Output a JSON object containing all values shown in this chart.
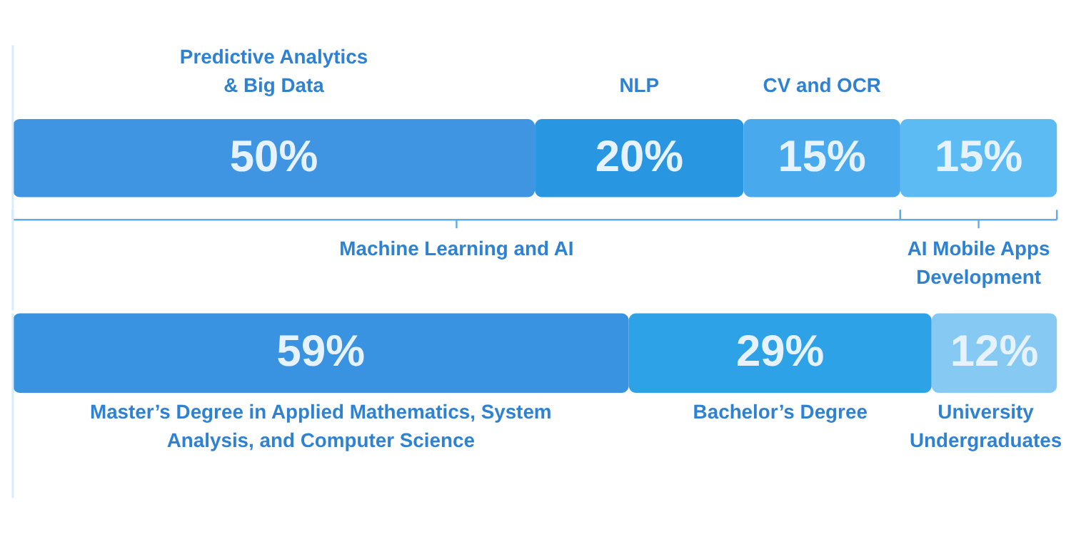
{
  "chart_data": [
    {
      "type": "bar",
      "orientation": "horizontal",
      "stacked": true,
      "categories": [
        null
      ],
      "series": [
        {
          "name": "Predictive Analytics\n& Big Data",
          "color": "#3f95e2",
          "values": [
            50
          ],
          "value_labels": [
            "50%"
          ]
        },
        {
          "name": "NLP",
          "color": "#2896e0",
          "values": [
            20
          ],
          "value_labels": [
            "20%"
          ]
        },
        {
          "name": "CV and OCR",
          "color": "#48a9ec",
          "values": [
            15
          ],
          "value_labels": [
            "15%"
          ]
        },
        {
          "name": "AI Mobile Apps\nDevelopment",
          "color": "#5dbbf4",
          "values": [
            15
          ],
          "value_labels": [
            "15%"
          ]
        }
      ],
      "annotations": [
        "Machine Learning and AI"
      ]
    },
    {
      "type": "bar",
      "orientation": "horizontal",
      "stacked": true,
      "categories": [
        null
      ],
      "series": [
        {
          "name": "Master’s Degree in Applied Mathematics, System\nAnalysis, and Computer Science",
          "color": "#3a93e0",
          "values": [
            59
          ],
          "value_labels": [
            "59%"
          ]
        },
        {
          "name": "Bachelor’s Degree",
          "color": "#2ea2e6",
          "values": [
            29
          ],
          "value_labels": [
            "29%"
          ]
        },
        {
          "name": "University\nUndergraduates",
          "color": "#86caf4",
          "values": [
            12
          ],
          "value_labels": [
            "12%"
          ]
        }
      ]
    }
  ]
}
